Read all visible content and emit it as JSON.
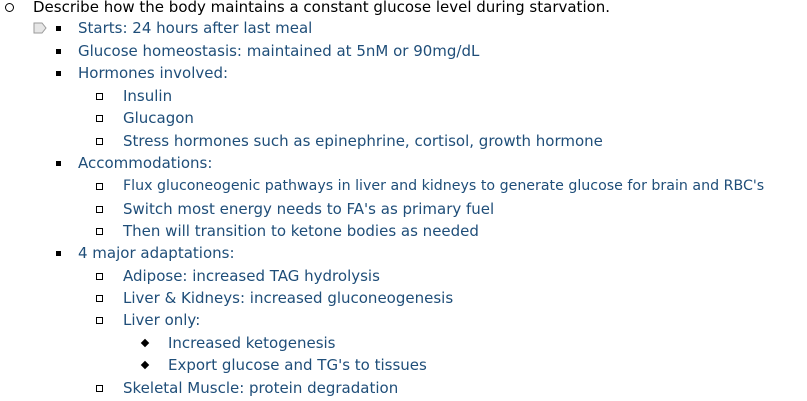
{
  "outline": {
    "heading": "Describe how the body maintains a constant glucose level during starvation.",
    "items": [
      {
        "level": 1,
        "text": "Starts: 24 hours after last meal"
      },
      {
        "level": 1,
        "text": "Glucose homeostasis: maintained at 5nM or 90mg/dL"
      },
      {
        "level": 1,
        "text": "Hormones involved:"
      },
      {
        "level": 2,
        "text": "Insulin"
      },
      {
        "level": 2,
        "text": "Glucagon"
      },
      {
        "level": 2,
        "text": "Stress hormones such as epinephrine, cortisol, growth hormone"
      },
      {
        "level": 1,
        "text": "Accommodations:"
      },
      {
        "level": 2,
        "text": "Flux gluconeogenic pathways in liver and kidneys to generate glucose for brain and RBC's"
      },
      {
        "level": 2,
        "text": "Switch most energy needs to FA's as primary fuel"
      },
      {
        "level": 2,
        "text": "Then will transition to ketone bodies as needed"
      },
      {
        "level": 1,
        "text": "4 major adaptations:"
      },
      {
        "level": 2,
        "text": "Adipose: increased TAG hydrolysis"
      },
      {
        "level": 2,
        "text": "Liver & Kidneys: increased gluconeogenesis"
      },
      {
        "level": 2,
        "text": "Liver only:"
      },
      {
        "level": 3,
        "text": "Increased ketogenesis"
      },
      {
        "level": 3,
        "text": "Export glucose and TG's to tissues"
      },
      {
        "level": 2,
        "text": "Skeletal Muscle: protein degradation"
      }
    ]
  }
}
